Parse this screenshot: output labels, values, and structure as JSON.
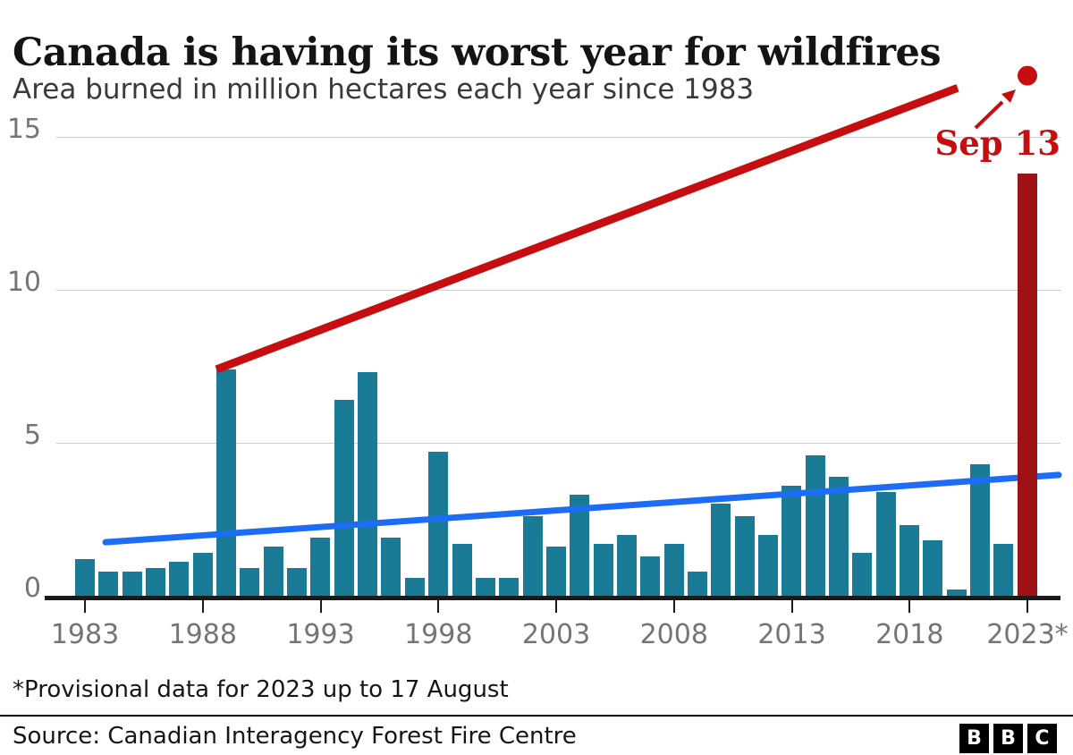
{
  "header": {
    "title": "Canada is having its worst year for wildfires",
    "subtitle": "Area burned in million hectares each year since 1983"
  },
  "chart_data": {
    "type": "bar",
    "title": "Canada is having its worst year for wildfires",
    "subtitle": "Area burned in million hectares each year since 1983",
    "xlabel": "",
    "ylabel": "Area burned (million hectares)",
    "ylim": [
      0,
      15
    ],
    "yticks": [
      0,
      5,
      10,
      15
    ],
    "grid": "horizontal",
    "categories": [
      1983,
      1984,
      1985,
      1986,
      1987,
      1988,
      1989,
      1990,
      1991,
      1992,
      1993,
      1994,
      1995,
      1996,
      1997,
      1998,
      1999,
      2000,
      2001,
      2002,
      2003,
      2004,
      2005,
      2006,
      2007,
      2008,
      2009,
      2010,
      2011,
      2012,
      2013,
      2014,
      2015,
      2016,
      2017,
      2018,
      2019,
      2020,
      2021,
      2022,
      2023
    ],
    "values": [
      1.2,
      0.8,
      0.8,
      0.9,
      1.1,
      1.4,
      7.4,
      0.9,
      1.6,
      0.9,
      1.9,
      6.4,
      7.3,
      1.9,
      0.6,
      4.7,
      1.7,
      0.6,
      0.6,
      2.6,
      1.6,
      3.3,
      1.7,
      2.0,
      1.3,
      1.7,
      0.8,
      3.0,
      2.6,
      2.0,
      3.6,
      4.6,
      3.9,
      1.4,
      3.4,
      2.3,
      1.8,
      0.2,
      4.3,
      1.7,
      13.8
    ],
    "x_tick_labels": [
      "1983",
      "1988",
      "1993",
      "1998",
      "2003",
      "2008",
      "2013",
      "2018",
      "2023*"
    ],
    "highlight_year": 2023,
    "trend_line": {
      "start_value": 1.75,
      "end_value": 3.95
    },
    "annotation": {
      "label": "Sep 13",
      "dot_value": 17.0,
      "line_from_year": 1989,
      "line_from_value": 7.4,
      "line_to_value": 16.6
    },
    "colors": {
      "bar": "#1a7b96",
      "highlight_bar": "#9e1114",
      "trend_line": "#1d6cf5",
      "record_line": "#c60d0f",
      "gridline": "#cccccc",
      "axis": "#1a1a1a",
      "axis_text": "#757575"
    }
  },
  "footnote": "*Provisional data for 2023 up to 17 August",
  "source": "Source: Canadian Interagency Forest Fire Centre",
  "logo": {
    "letters": [
      "B",
      "B",
      "C"
    ]
  }
}
